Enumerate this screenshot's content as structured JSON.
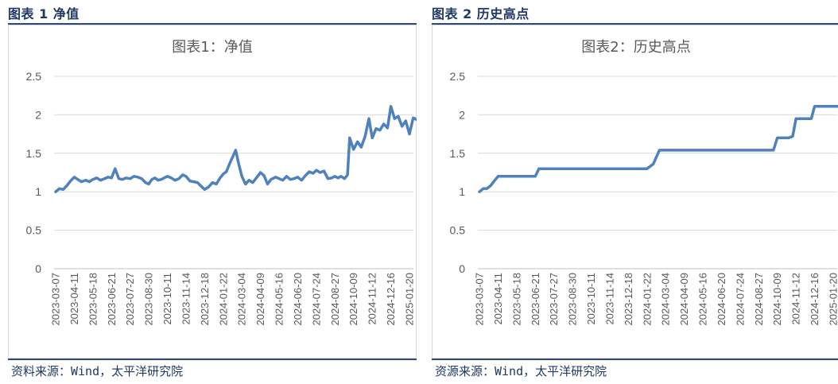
{
  "left_panel": {
    "caption": "图表 1 净值",
    "source": "资料来源：Wind，太平洋研究院"
  },
  "right_panel": {
    "caption": "图表 2 历史高点",
    "source": "资源来源：Wind，太平洋研究院"
  },
  "chart_data": [
    {
      "type": "line",
      "title": "图表1：净值",
      "xlabel": "",
      "ylabel": "",
      "ylim": [
        0,
        2.5
      ],
      "yticks": [
        "0",
        "0.5",
        "1",
        "1.5",
        "2",
        "2.5"
      ],
      "xticks": [
        "2023-03-07",
        "2023-04-11",
        "2023-05-18",
        "2023-06-21",
        "2023-07-27",
        "2023-08-30",
        "2023-10-11",
        "2023-11-14",
        "2023-12-18",
        "2024-01-22",
        "2024-03-04",
        "2024-04-09",
        "2024-05-16",
        "2024-06-20",
        "2024-07-24",
        "2024-08-27",
        "2024-10-09",
        "2024-11-12",
        "2024-12-16",
        "2025-01-20"
      ],
      "grid": true,
      "color": "#4f81bd",
      "series": [
        {
          "x": [
            "2023-03-07",
            "2023-03-14",
            "2023-03-21",
            "2023-03-28",
            "2023-04-04",
            "2023-04-11",
            "2023-04-18",
            "2023-04-25",
            "2023-05-04",
            "2023-05-11",
            "2023-05-18",
            "2023-05-25",
            "2023-06-01",
            "2023-06-08",
            "2023-06-15",
            "2023-06-21",
            "2023-06-28",
            "2023-07-05",
            "2023-07-12",
            "2023-07-19",
            "2023-07-27",
            "2023-08-03",
            "2023-08-10",
            "2023-08-17",
            "2023-08-24",
            "2023-08-30",
            "2023-09-06",
            "2023-09-13",
            "2023-09-20",
            "2023-09-27",
            "2023-10-11",
            "2023-10-18",
            "2023-10-25",
            "2023-11-01",
            "2023-11-08",
            "2023-11-14",
            "2023-11-21",
            "2023-11-28",
            "2023-12-05",
            "2023-12-12",
            "2023-12-18",
            "2023-12-25",
            "2024-01-02",
            "2024-01-09",
            "2024-01-16",
            "2024-01-22",
            "2024-01-29",
            "2024-02-05",
            "2024-02-19",
            "2024-02-26",
            "2024-03-04",
            "2024-03-11",
            "2024-03-18",
            "2024-03-25",
            "2024-04-01",
            "2024-04-09",
            "2024-04-16",
            "2024-04-23",
            "2024-04-30",
            "2024-05-09",
            "2024-05-16",
            "2024-05-23",
            "2024-05-30",
            "2024-06-06",
            "2024-06-13",
            "2024-06-20",
            "2024-06-27",
            "2024-07-04",
            "2024-07-11",
            "2024-07-18",
            "2024-07-24",
            "2024-07-31",
            "2024-08-07",
            "2024-08-14",
            "2024-08-21",
            "2024-08-27",
            "2024-09-03",
            "2024-09-10",
            "2024-09-18",
            "2024-09-25",
            "2024-09-30",
            "2024-10-09",
            "2024-10-16",
            "2024-10-23",
            "2024-10-30",
            "2024-11-06",
            "2024-11-12",
            "2024-11-19",
            "2024-11-26",
            "2024-12-03",
            "2024-12-10",
            "2024-12-16",
            "2024-12-23",
            "2024-12-30",
            "2025-01-06",
            "2025-01-13",
            "2025-01-20",
            "2025-01-27",
            "2025-02-05",
            "2025-02-12"
          ],
          "y": [
            1.0,
            1.04,
            1.03,
            1.08,
            1.14,
            1.19,
            1.16,
            1.13,
            1.15,
            1.13,
            1.16,
            1.18,
            1.15,
            1.17,
            1.19,
            1.18,
            1.3,
            1.17,
            1.16,
            1.18,
            1.17,
            1.2,
            1.19,
            1.17,
            1.12,
            1.1,
            1.16,
            1.18,
            1.15,
            1.16,
            1.2,
            1.18,
            1.15,
            1.17,
            1.22,
            1.2,
            1.14,
            1.13,
            1.12,
            1.07,
            1.03,
            1.06,
            1.12,
            1.1,
            1.18,
            1.23,
            1.26,
            1.36,
            1.54,
            1.36,
            1.2,
            1.1,
            1.15,
            1.12,
            1.18,
            1.25,
            1.21,
            1.1,
            1.16,
            1.19,
            1.17,
            1.15,
            1.2,
            1.16,
            1.17,
            1.19,
            1.15,
            1.21,
            1.26,
            1.24,
            1.28,
            1.25,
            1.27,
            1.17,
            1.18,
            1.2,
            1.18,
            1.2,
            1.17,
            1.22,
            1.7,
            1.55,
            1.65,
            1.58,
            1.72,
            1.95,
            1.7,
            1.82,
            1.8,
            1.88,
            1.83,
            2.11,
            1.95,
            1.98,
            1.85,
            1.92,
            1.75,
            1.96,
            1.93,
            1.96
          ]
        }
      ]
    },
    {
      "type": "line",
      "title": "图表2：历史高点",
      "xlabel": "",
      "ylabel": "",
      "ylim": [
        0,
        2.5
      ],
      "yticks": [
        "0",
        "0.5",
        "1",
        "1.5",
        "2",
        "2.5"
      ],
      "xticks": [
        "2023-03-07",
        "2023-04-11",
        "2023-05-18",
        "2023-06-21",
        "2023-07-27",
        "2023-08-30",
        "2023-10-11",
        "2023-11-14",
        "2023-12-18",
        "2024-01-22",
        "2024-03-04",
        "2024-04-09",
        "2024-05-16",
        "2024-06-20",
        "2024-07-24",
        "2024-08-27",
        "2024-10-09",
        "2024-11-12",
        "2024-12-16",
        "2025-01-20"
      ],
      "grid": true,
      "color": "#4f81bd",
      "series": [
        {
          "x": [
            "2023-03-07",
            "2023-03-14",
            "2023-03-21",
            "2023-03-28",
            "2023-04-04",
            "2023-04-11",
            "2023-06-21",
            "2023-06-28",
            "2024-01-22",
            "2024-02-05",
            "2024-02-19",
            "2024-02-26",
            "2024-09-30",
            "2024-10-09",
            "2024-10-30",
            "2024-11-06",
            "2024-11-12",
            "2024-12-10",
            "2024-12-16",
            "2025-02-12"
          ],
          "y": [
            1.0,
            1.04,
            1.04,
            1.08,
            1.14,
            1.2,
            1.2,
            1.3,
            1.3,
            1.36,
            1.54,
            1.54,
            1.54,
            1.7,
            1.7,
            1.72,
            1.95,
            1.95,
            2.11,
            2.11
          ]
        }
      ]
    }
  ]
}
